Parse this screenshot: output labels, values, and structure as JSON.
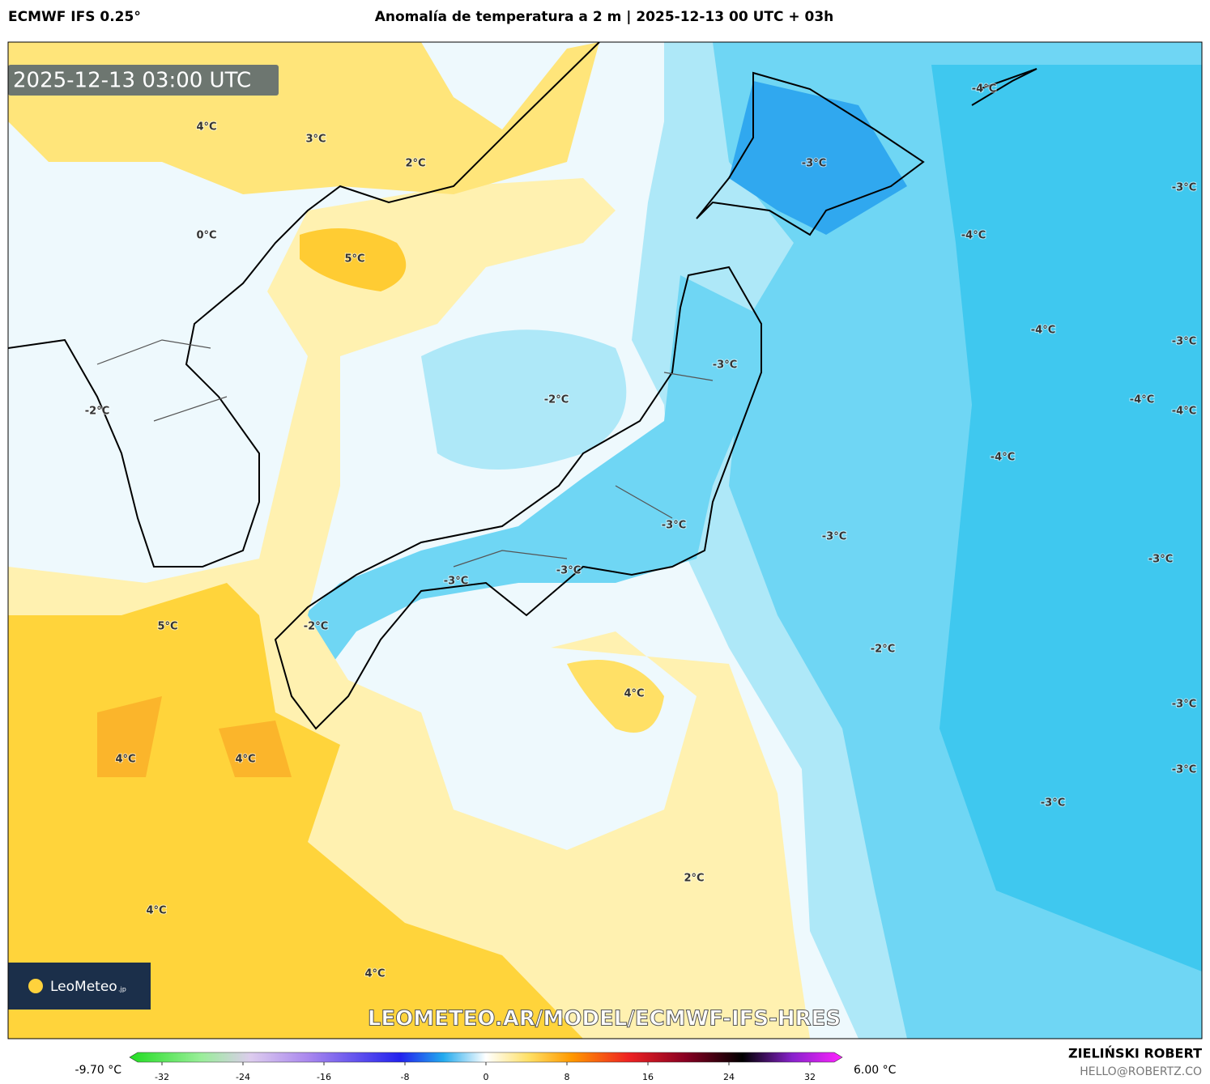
{
  "header": {
    "model": "ECMWF IFS 0.25°",
    "title": "Anomalía de temperatura a 2 m | 2025-12-13 00 UTC + 03h"
  },
  "timestamp": "2025-12-13 03:00 UTC",
  "map_labels": [
    "4°C",
    "3°C",
    "2°C",
    "-3°C",
    "-4°C",
    "-3°C",
    "0°C",
    "5°C",
    "-4°C",
    "-3°C",
    "-4°C",
    "-3°C",
    "-2°C",
    "-4°C",
    "-4°C",
    "-2°C",
    "-4°C",
    "-3°C",
    "-3°C",
    "-3°C",
    "-3°C",
    "-3°C",
    "5°C",
    "-2°C",
    "-2°C",
    "4°C",
    "-3°C",
    "4°C",
    "4°C",
    "-3°C",
    "-3°C",
    "2°C",
    "4°C",
    "4°C"
  ],
  "logo": {
    "name": "LeoMeteo",
    "suffix": ".jp"
  },
  "watermark": "LEOMETEO.AR/MODEL/ECMWF-IFS-HRES",
  "colorbar": {
    "min_label": "-9.70 °C",
    "max_label": "6.00 °C",
    "range": [
      -32,
      32
    ],
    "ticks": [
      -32,
      -24,
      -16,
      -8,
      0,
      8,
      16,
      24,
      32
    ]
  },
  "author": {
    "name": "ZIELIŃSKI ROBERT",
    "email": "HELLO@ROBERTZ.CO"
  }
}
